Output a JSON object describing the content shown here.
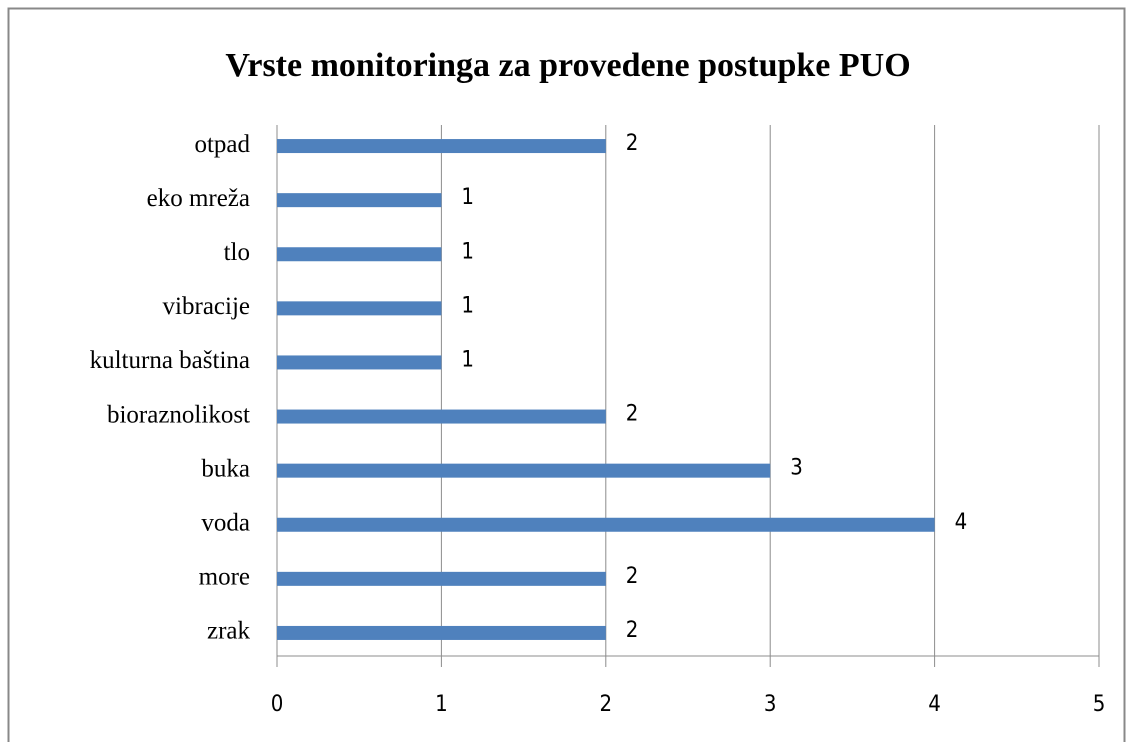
{
  "chart_data": {
    "type": "bar",
    "orientation": "horizontal",
    "title": "Vrste monitoringa za provedene postupke PUO",
    "categories": [
      "otpad",
      "eko mreža",
      "tlo",
      "vibracije",
      "kulturna baština",
      "bioraznolikost",
      "buka",
      "voda",
      "more",
      "zrak"
    ],
    "values": [
      2,
      1,
      1,
      1,
      1,
      2,
      3,
      4,
      2,
      2
    ],
    "color": "#4f81bd",
    "xlim": [
      0,
      5
    ],
    "xticks": [
      0,
      1,
      2,
      3,
      4,
      5
    ],
    "grid": true,
    "data_labels": true
  }
}
